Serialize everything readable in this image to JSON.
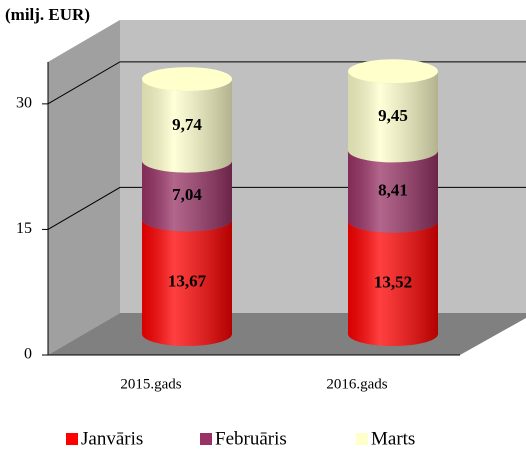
{
  "chart_data": {
    "type": "bar3d",
    "stacked": true,
    "title": "(milj. EUR)",
    "categories": [
      "2015.gads",
      "2016.gads"
    ],
    "series": [
      {
        "name": "Janvāris",
        "color": "#ff0000",
        "values": [
          13.67,
          13.52
        ],
        "value_labels": [
          "13,67",
          "13,52"
        ]
      },
      {
        "name": "Februāris",
        "color": "#993366",
        "values": [
          7.04,
          8.41
        ],
        "value_labels": [
          "7,04",
          "8,41"
        ]
      },
      {
        "name": "Marts",
        "color": "#ffffcc",
        "values": [
          9.74,
          9.45
        ],
        "value_labels": [
          "9,74",
          "9,45"
        ]
      }
    ],
    "ylim": [
      0,
      35
    ],
    "yticks": [
      0,
      15,
      30
    ],
    "grid": true,
    "legend": "bottom"
  }
}
